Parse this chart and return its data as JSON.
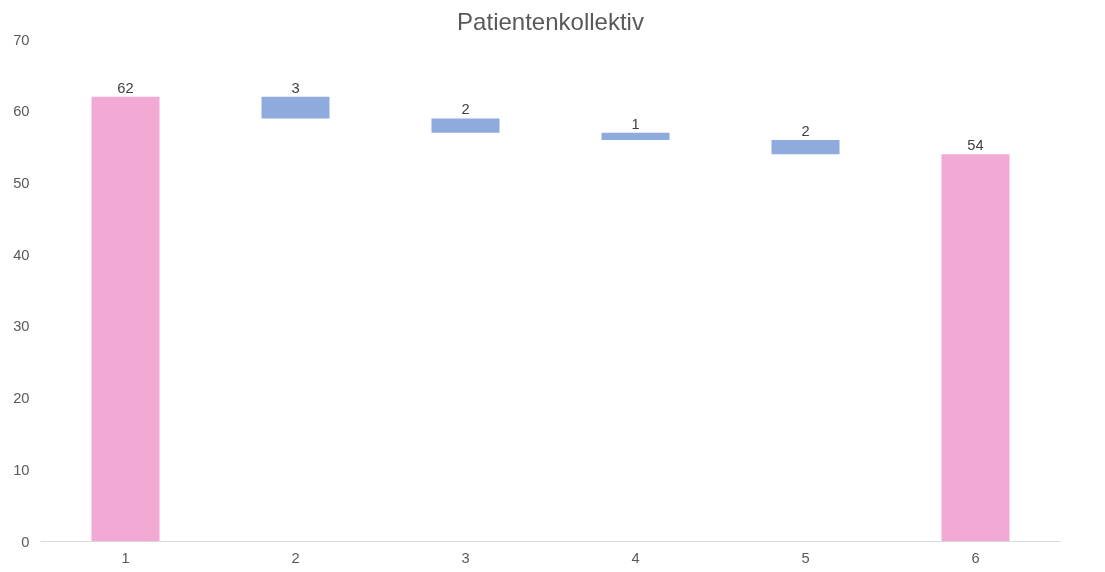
{
  "chart_data": {
    "type": "bar",
    "title": "Patientenkollektiv",
    "categories": [
      "1",
      "2",
      "3",
      "4",
      "5",
      "6"
    ],
    "values": [
      62,
      3,
      2,
      1,
      2,
      54
    ],
    "base": [
      0,
      59,
      57,
      56,
      54,
      0
    ],
    "colors": [
      "#f2aad4",
      "#8faadc",
      "#8faadc",
      "#8faadc",
      "#8faadc",
      "#f2aad4"
    ],
    "ylim": [
      0,
      70
    ],
    "yticks": [
      0,
      10,
      20,
      30,
      40,
      50,
      60,
      70
    ],
    "data_labels": true,
    "grid": false
  }
}
